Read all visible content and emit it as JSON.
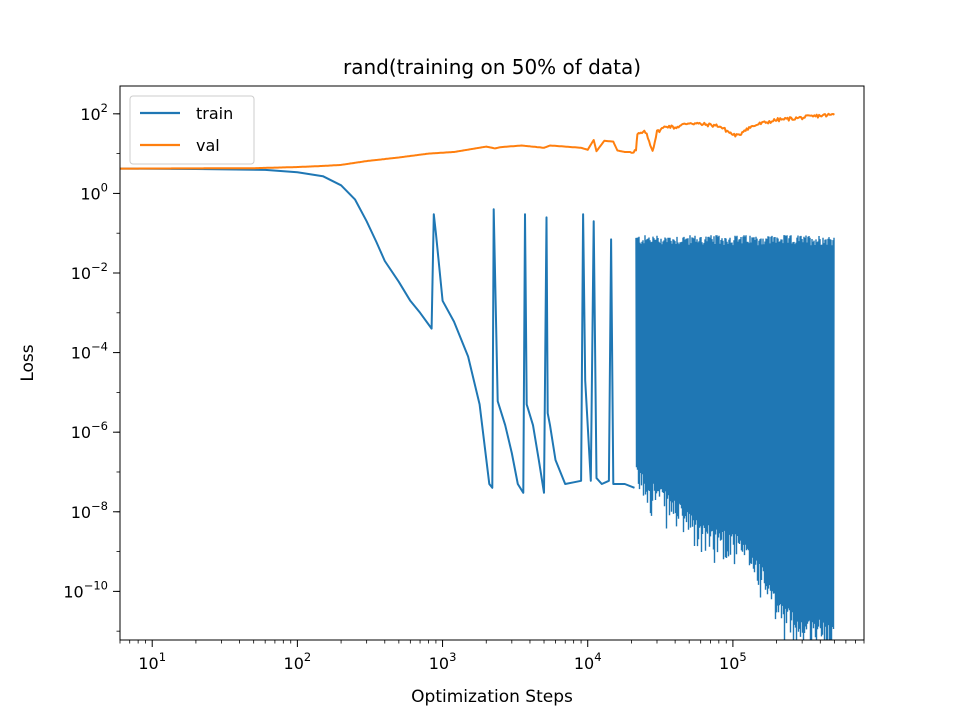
{
  "chart_data": {
    "type": "line",
    "title": "rand(training on 50% of data)",
    "xlabel": "Optimization Steps",
    "ylabel": "Loss",
    "xscale": "log",
    "yscale": "log",
    "xlim": [
      6,
      800000
    ],
    "ylim": [
      6e-12,
      500
    ],
    "xticks": [
      {
        "value": 10,
        "label": "10",
        "exp": "1"
      },
      {
        "value": 100,
        "label": "10",
        "exp": "2"
      },
      {
        "value": 1000,
        "label": "10",
        "exp": "3"
      },
      {
        "value": 10000,
        "label": "10",
        "exp": "4"
      },
      {
        "value": 100000,
        "label": "10",
        "exp": "5"
      }
    ],
    "yticks": [
      {
        "value": 1e-10,
        "label": "10",
        "exp": "−10"
      },
      {
        "value": 1e-08,
        "label": "10",
        "exp": "−8"
      },
      {
        "value": 1e-06,
        "label": "10",
        "exp": "−6"
      },
      {
        "value": 0.0001,
        "label": "10",
        "exp": "−4"
      },
      {
        "value": 0.01,
        "label": "10",
        "exp": "−2"
      },
      {
        "value": 1,
        "label": "10",
        "exp": "0"
      },
      {
        "value": 100,
        "label": "10",
        "exp": "2"
      }
    ],
    "grid": false,
    "legend_position": "top-left",
    "series": [
      {
        "name": "train",
        "color": "#1f77b4",
        "x": [
          6,
          20,
          60,
          100,
          150,
          200,
          250,
          300,
          350,
          400,
          500,
          600,
          700,
          840,
          870,
          900,
          1000,
          1200,
          1500,
          1800,
          2100,
          2200,
          2250,
          2400,
          2700,
          3000,
          3300,
          3600,
          3700,
          3800,
          4200,
          4600,
          5000,
          5200,
          5300,
          5500,
          6000,
          7000,
          8000,
          9000,
          9300,
          9600,
          10500,
          11000,
          11500,
          12500,
          14000,
          14500,
          15000,
          18000,
          21000
        ],
        "y": [
          4.2,
          4.1,
          3.9,
          3.4,
          2.7,
          1.6,
          0.7,
          0.2,
          0.06,
          0.02,
          0.006,
          0.002,
          0.001,
          0.0004,
          0.3,
          0.1,
          0.002,
          0.0006,
          8e-05,
          5e-06,
          5e-08,
          4e-08,
          0.4,
          6e-06,
          1.5e-06,
          3e-07,
          5e-08,
          3e-08,
          0.3,
          5e-06,
          1.5e-06,
          2e-07,
          3e-08,
          0.25,
          3e-06,
          1.5e-06,
          2e-07,
          5e-08,
          5.5e-08,
          6e-08,
          0.3,
          2e-05,
          6e-08,
          0.2,
          7e-08,
          5e-08,
          6e-08,
          0.07,
          5e-08,
          5e-08,
          4e-08
        ],
        "noise_band": {
          "x_start": 21500,
          "x_end": 500000,
          "upper": 0.09,
          "lower_points": [
            [
              21500,
              4e-08
            ],
            [
              40000,
              6e-09
            ],
            [
              60000,
              1.5e-09
            ],
            [
              100000,
              1e-09
            ],
            [
              150000,
              2e-10
            ],
            [
              200000,
              2e-11
            ],
            [
              300000,
              6e-12
            ],
            [
              500000,
              6e-12
            ]
          ]
        }
      },
      {
        "name": "val",
        "color": "#ff7f0e",
        "x": [
          6,
          50,
          100,
          150,
          200,
          300,
          500,
          800,
          1200,
          2000,
          2300,
          2500,
          3500,
          5000,
          5500,
          7000,
          9000,
          10000,
          11000,
          11500,
          13000,
          15000,
          16000,
          18000,
          20000,
          21500,
          22000,
          25000,
          28000,
          30000,
          35000,
          40000,
          50000,
          60000,
          80000,
          100000,
          110000,
          120000,
          150000,
          200000,
          300000,
          400000,
          500000
        ],
        "y": [
          4.2,
          4.3,
          4.6,
          4.9,
          5.2,
          6.5,
          8.0,
          10.0,
          11.0,
          15.0,
          13.5,
          14.5,
          16.0,
          14.0,
          16.0,
          15.0,
          14.0,
          12.5,
          22.0,
          11.5,
          21.0,
          20.0,
          12.0,
          11.0,
          11.0,
          12.0,
          30.0,
          35.0,
          12.0,
          35.0,
          50.0,
          45.0,
          60.0,
          55.0,
          50.0,
          30.0,
          28.0,
          40.0,
          55.0,
          70.0,
          80.0,
          90.0,
          95.0
        ]
      }
    ]
  }
}
